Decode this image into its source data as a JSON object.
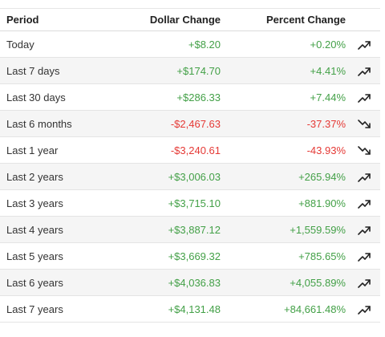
{
  "table": {
    "headers": {
      "period": "Period",
      "dollar": "Dollar Change",
      "percent": "Percent Change"
    },
    "colors": {
      "up": "#43a047",
      "down": "#e53935"
    },
    "rows": [
      {
        "period": "Today",
        "dollar": "+$8.20",
        "percent": "+0.20%",
        "trend": "up",
        "icon": "trending-up-icon"
      },
      {
        "period": "Last 7 days",
        "dollar": "+$174.70",
        "percent": "+4.41%",
        "trend": "up",
        "icon": "trending-up-icon"
      },
      {
        "period": "Last 30 days",
        "dollar": "+$286.33",
        "percent": "+7.44%",
        "trend": "up",
        "icon": "trending-up-icon"
      },
      {
        "period": "Last 6 months",
        "dollar": "-$2,467.63",
        "percent": "-37.37%",
        "trend": "down",
        "icon": "trending-down-icon"
      },
      {
        "period": "Last 1 year",
        "dollar": "-$3,240.61",
        "percent": "-43.93%",
        "trend": "down",
        "icon": "trending-down-icon"
      },
      {
        "period": "Last 2 years",
        "dollar": "+$3,006.03",
        "percent": "+265.94%",
        "trend": "up",
        "icon": "trending-up-icon"
      },
      {
        "period": "Last 3 years",
        "dollar": "+$3,715.10",
        "percent": "+881.90%",
        "trend": "up",
        "icon": "trending-up-icon"
      },
      {
        "period": "Last 4 years",
        "dollar": "+$3,887.12",
        "percent": "+1,559.59%",
        "trend": "up",
        "icon": "trending-up-icon"
      },
      {
        "period": "Last 5 years",
        "dollar": "+$3,669.32",
        "percent": "+785.65%",
        "trend": "up",
        "icon": "trending-up-icon"
      },
      {
        "period": "Last 6 years",
        "dollar": "+$4,036.83",
        "percent": "+4,055.89%",
        "trend": "up",
        "icon": "trending-up-icon"
      },
      {
        "period": "Last 7 years",
        "dollar": "+$4,131.48",
        "percent": "+84,661.48%",
        "trend": "up",
        "icon": "trending-up-icon"
      }
    ]
  }
}
